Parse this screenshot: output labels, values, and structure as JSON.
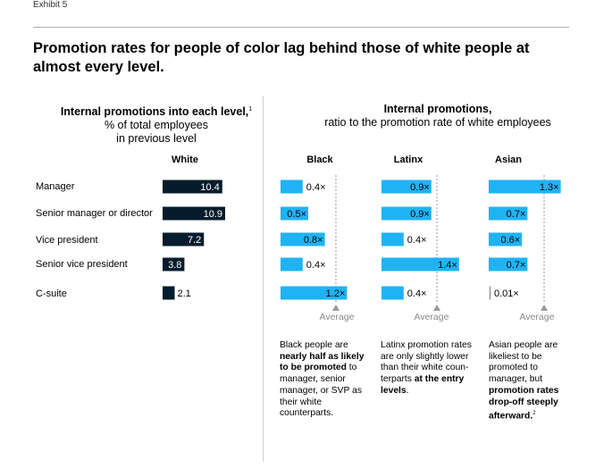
{
  "exhibit": "Exhibit 5",
  "title": "Promotion rates for people of color lag behind those of white people at almost every level.",
  "left_header": {
    "line1": "Internal promotions into each level,",
    "footnote": "1",
    "line2": "% of total employees",
    "line3": "in previous level"
  },
  "right_header": {
    "line1": "Internal promotions,",
    "line2": "ratio to the promotion rate of white employees"
  },
  "average_label": "Average",
  "notes": {
    "black": [
      {
        "t": "Black people are ",
        "b": false
      },
      {
        "t": "nearly half as likely to be promoted",
        "b": true
      },
      {
        "t": " to manager, senior manager, or SVP as their white counterparts.",
        "b": false
      }
    ],
    "latinx": [
      {
        "t": "Latinx promotion rates are only slightly lower than their white coun-terparts ",
        "b": false
      },
      {
        "t": "at the entry levels",
        "b": true
      },
      {
        "t": ".",
        "b": false
      }
    ],
    "asian": [
      {
        "t": "Asian people are likeliest to be promoted to manager, but ",
        "b": false
      },
      {
        "t": "promotion rates drop-off steeply afterward.",
        "b": true
      },
      {
        "t": "2",
        "b": false,
        "sup": true
      }
    ]
  },
  "colors": {
    "navy": "#051c2c",
    "cyan": "#1fb3f5",
    "avgline": "#9a9a9a",
    "text": "#000000"
  },
  "chart_data": [
    {
      "type": "bar",
      "orientation": "horizontal",
      "name": "White",
      "categories": [
        "Manager",
        "Senior manager or director",
        "Vice president",
        "Senior vice president",
        "C-suite"
      ],
      "values": [
        10.4,
        10.9,
        7.2,
        3.8,
        2.1
      ],
      "labels": [
        "10.4",
        "10.9",
        "7.2",
        "3.8",
        "2.1"
      ],
      "unit": "% of total employees in previous level"
    },
    {
      "type": "bar",
      "orientation": "horizontal",
      "name": "Black",
      "categories": [
        "Manager",
        "Senior manager or director",
        "Vice president",
        "Senior vice president",
        "C-suite"
      ],
      "values": [
        0.4,
        0.5,
        0.8,
        0.4,
        1.2
      ],
      "labels": [
        "0.4×",
        "0.5×",
        "0.8×",
        "0.4×",
        "1.2×"
      ],
      "average": 1.0
    },
    {
      "type": "bar",
      "orientation": "horizontal",
      "name": "Latinx",
      "categories": [
        "Manager",
        "Senior manager or director",
        "Vice president",
        "Senior vice president",
        "C-suite"
      ],
      "values": [
        0.9,
        0.9,
        0.4,
        1.4,
        0.4
      ],
      "labels": [
        "0.9×",
        "0.9×",
        "0.4×",
        "1.4×",
        "0.4×"
      ],
      "average": 1.0
    },
    {
      "type": "bar",
      "orientation": "horizontal",
      "name": "Asian",
      "categories": [
        "Manager",
        "Senior manager or director",
        "Vice president",
        "Senior vice president",
        "C-suite"
      ],
      "values": [
        1.3,
        0.7,
        0.6,
        0.7,
        0.01
      ],
      "labels": [
        "1.3×",
        "0.7×",
        "0.6×",
        "0.7×",
        "0.01×"
      ],
      "average": 1.0
    }
  ]
}
